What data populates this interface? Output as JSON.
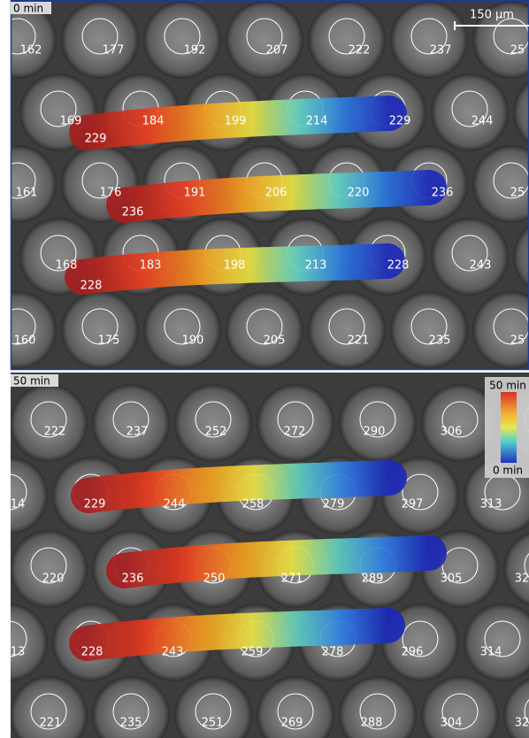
{
  "panel_1": {
    "time": "0 min",
    "scale_bar": "150 μm",
    "labels": [
      "162",
      "177",
      "192",
      "207",
      "222",
      "237",
      "25",
      "169",
      "184",
      "199",
      "214",
      "229",
      "244",
      "229",
      "161",
      "176",
      "191",
      "206",
      "220",
      "236",
      "25",
      "236",
      "168",
      "183",
      "198",
      "213",
      "228",
      "243",
      "228",
      "160",
      "175",
      "190",
      "205",
      "221",
      "235",
      "25"
    ]
  },
  "panel_2": {
    "time": "50 min",
    "colorbar_max": "50 min",
    "colorbar_min": "0 min",
    "labels": [
      "222",
      "237",
      "252",
      "272",
      "290",
      "306",
      "14",
      "229",
      "244",
      "258",
      "279",
      "297",
      "313",
      "220",
      "236",
      "250",
      "271",
      "289",
      "305",
      "32",
      "13",
      "228",
      "243",
      "259",
      "278",
      "296",
      "314",
      "221",
      "235",
      "251",
      "269",
      "288",
      "304",
      "32"
    ]
  }
}
